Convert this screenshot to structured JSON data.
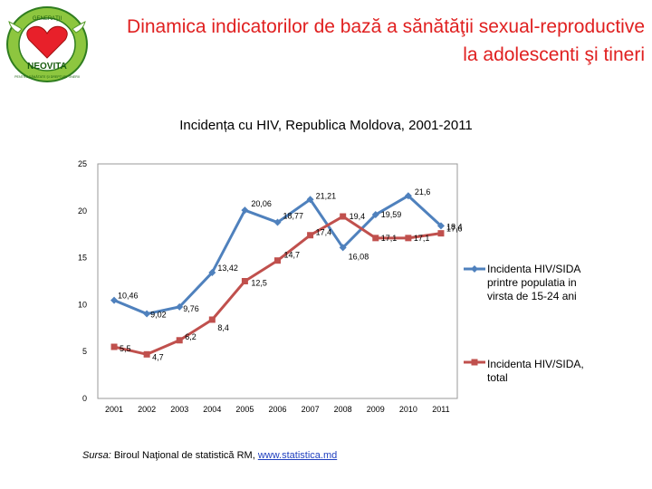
{
  "header": {
    "title_line1": "Dinamica indicatorilor de bază a sănătăţii sexual-reproductive",
    "title_line2": "la adolescenti şi tineri",
    "logo_text_top": "GENERAŢII",
    "logo_text_main": "NEOVITA",
    "logo_text_bottom": "PENTRU SĂNĂTATE ŞI DREPTURI TINERII",
    "logo_icon": "heart-with-wings-icon"
  },
  "chart_data": {
    "type": "line",
    "title": "Incidența cu HIV, Republica Moldova, 2001-2011",
    "categories": [
      "2001",
      "2002",
      "2003",
      "2004",
      "2005",
      "2006",
      "2007",
      "2008",
      "2009",
      "2010",
      "2011"
    ],
    "ylim": [
      0,
      25
    ],
    "yticks": [
      "0",
      "5",
      "10",
      "15",
      "20",
      "25"
    ],
    "grid": false,
    "legend_position": "right",
    "series": [
      {
        "name": "Incidenta HIV/SIDA printre populatia in virsta de 15-24 ani",
        "color": "#4f81bd",
        "marker": "diamond",
        "values": [
          10.46,
          9.02,
          9.76,
          13.42,
          20.06,
          18.77,
          21.21,
          16.08,
          19.59,
          21.6,
          18.4
        ],
        "labels": [
          "10,46",
          "9,02",
          "9,76",
          "13,42",
          "20,06",
          "18,77",
          "21,21",
          "16,08",
          "19,59",
          "21,6",
          "18,4"
        ]
      },
      {
        "name": "Incidenta HIV/SIDA, total",
        "color": "#c0504d",
        "marker": "square",
        "values": [
          5.5,
          4.7,
          6.2,
          8.4,
          12.5,
          14.7,
          17.4,
          19.4,
          17.1,
          17.1,
          17.6
        ],
        "labels": [
          "5,5",
          "4,7",
          "6,2",
          "8,4",
          "12,5",
          "14,7",
          "17,4",
          "19,4",
          "17,1",
          "17,1",
          "17,6"
        ]
      }
    ]
  },
  "source": {
    "label": "Sursa:",
    "text": " Biroul Naţional de statistică RM, ",
    "link": "www.statistica.md"
  }
}
